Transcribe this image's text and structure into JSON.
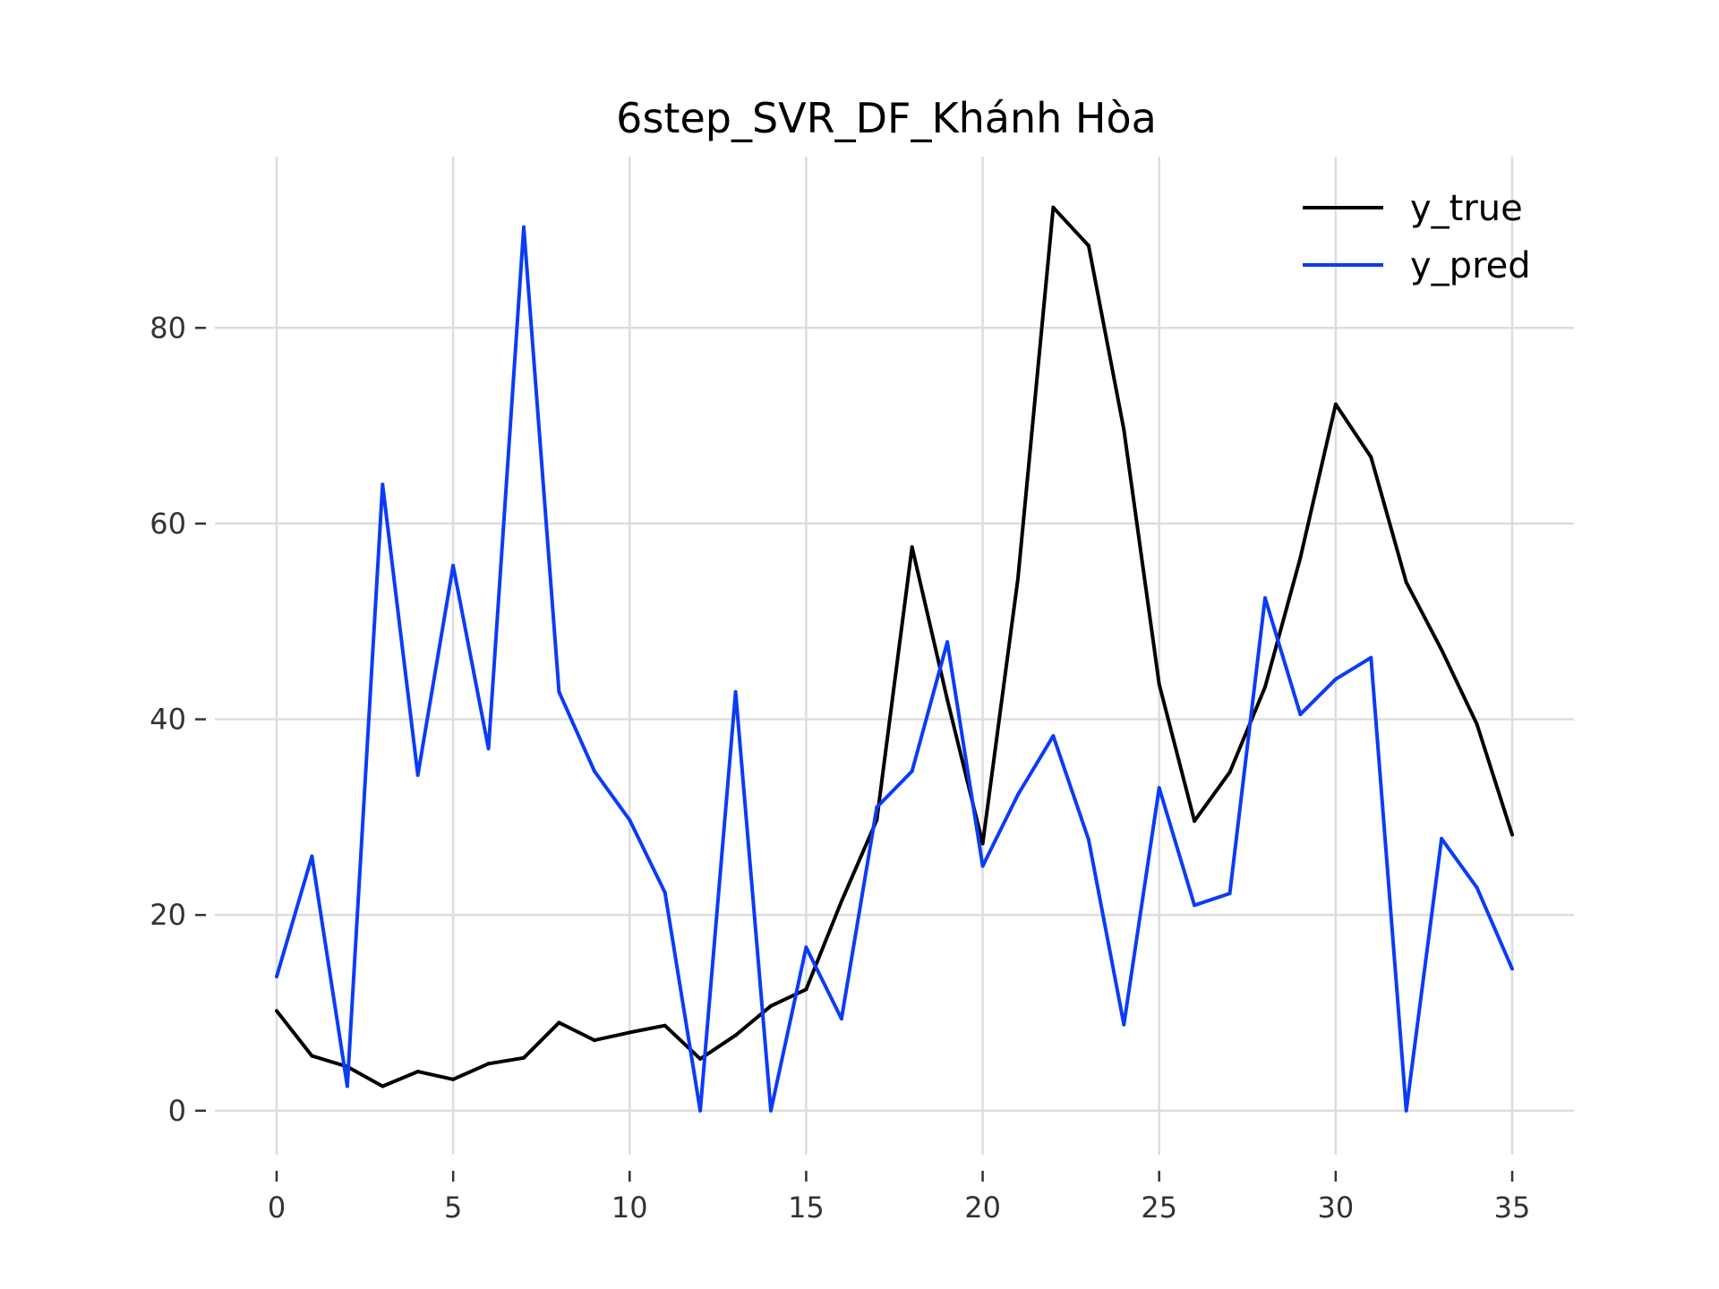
{
  "chart_data": {
    "type": "line",
    "title": "6step_SVR_DF_Khánh Hòa",
    "xlabel": "",
    "ylabel": "",
    "xlim": [
      -1.75,
      36.75
    ],
    "ylim": [
      -4.5,
      97.5
    ],
    "x_ticks": [
      0,
      5,
      10,
      15,
      20,
      25,
      30,
      35
    ],
    "y_ticks": [
      0,
      20,
      40,
      60,
      80
    ],
    "grid": true,
    "legend_position": "top-right",
    "x": [
      0,
      1,
      2,
      3,
      4,
      5,
      6,
      7,
      8,
      9,
      10,
      11,
      12,
      13,
      14,
      15,
      16,
      17,
      18,
      19,
      20,
      21,
      22,
      23,
      24,
      25,
      26,
      27,
      28,
      29,
      30,
      31,
      32,
      33,
      34,
      35
    ],
    "series": [
      {
        "name": "y_true",
        "color": "#000000",
        "values": [
          10.2,
          5.6,
          4.5,
          2.5,
          4.0,
          3.2,
          4.8,
          5.4,
          9.0,
          7.2,
          8.0,
          8.7,
          5.3,
          7.7,
          10.7,
          12.4,
          21.4,
          29.7,
          57.6,
          42.0,
          27.3,
          54.4,
          92.3,
          88.4,
          69.6,
          43.6,
          29.6,
          34.6,
          43.3,
          56.5,
          72.2,
          66.8,
          54.0,
          47.1,
          39.5,
          28.2
        ]
      },
      {
        "name": "y_pred",
        "color": "#0b3cf5",
        "values": [
          13.7,
          26.0,
          2.5,
          64.0,
          34.3,
          55.7,
          37.0,
          90.3,
          42.8,
          34.7,
          29.7,
          22.3,
          0.0,
          42.8,
          0.0,
          16.7,
          9.4,
          31.0,
          34.7,
          47.9,
          25.0,
          32.3,
          38.3,
          27.7,
          8.8,
          33.0,
          21.0,
          22.2,
          52.4,
          40.5,
          44.1,
          46.3,
          0.0,
          27.8,
          22.8,
          14.5
        ]
      }
    ]
  }
}
